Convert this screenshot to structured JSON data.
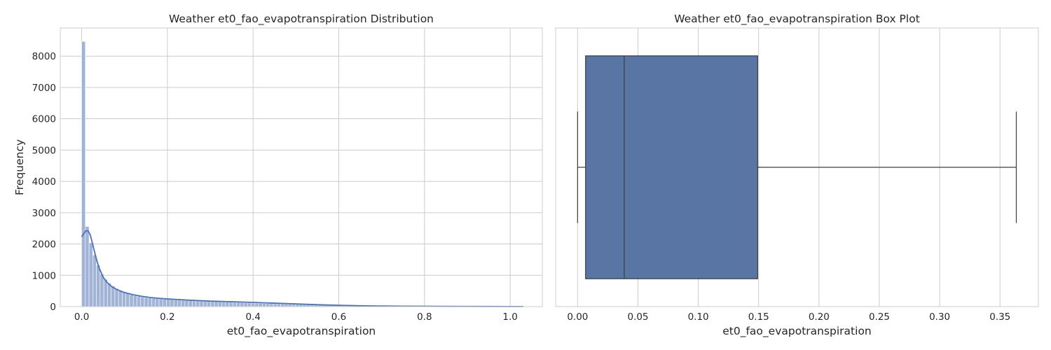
{
  "chart_data": [
    {
      "type": "bar",
      "title": "Weather et0_fao_evapotranspiration Distribution",
      "xlabel": "et0_fao_evapotranspiration",
      "ylabel": "Frequency",
      "xlim": [
        -0.05,
        1.075
      ],
      "ylim": [
        0,
        8900
      ],
      "x_ticks": [
        0.0,
        0.2,
        0.4,
        0.6,
        0.8,
        1.0
      ],
      "x_tick_labels": [
        "0.0",
        "0.2",
        "0.4",
        "0.6",
        "0.8",
        "1.0"
      ],
      "y_ticks": [
        0,
        1000,
        2000,
        3000,
        4000,
        5000,
        6000,
        7000,
        8000
      ],
      "y_tick_labels": [
        "0",
        "1000",
        "2000",
        "3000",
        "4000",
        "5000",
        "6000",
        "7000",
        "8000"
      ],
      "grid": true,
      "bar_color": "#a1b3d6",
      "kde_color": "#4c72b0",
      "bin_width": 0.0086,
      "bin_starts": [
        0.0,
        0.0086,
        0.0172,
        0.0258,
        0.0344,
        0.043,
        0.0516,
        0.0602,
        0.0688,
        0.0774,
        0.086,
        0.0946,
        0.1032,
        0.1118,
        0.1204,
        0.129,
        0.1376,
        0.1462,
        0.1548,
        0.1634,
        0.172,
        0.1806,
        0.1892,
        0.1978,
        0.2064,
        0.215,
        0.2236,
        0.2322,
        0.2408,
        0.2494,
        0.258,
        0.2666,
        0.2752,
        0.2838,
        0.2924,
        0.301,
        0.3096,
        0.3182,
        0.3268,
        0.3354,
        0.344,
        0.3526,
        0.3612,
        0.3698,
        0.3784,
        0.387,
        0.3956,
        0.4042,
        0.4128,
        0.4214,
        0.43,
        0.4386,
        0.4472,
        0.4558,
        0.4644,
        0.473,
        0.4816,
        0.4902,
        0.4988,
        0.5074,
        0.516,
        0.5246,
        0.5332,
        0.5418,
        0.5504,
        0.559,
        0.5676,
        0.5762,
        0.5848,
        0.5934,
        0.602,
        0.6106,
        0.6192,
        0.6278,
        0.6364,
        0.645,
        0.6536,
        0.6622,
        0.6708,
        0.6794,
        0.688,
        0.6966,
        0.7052,
        0.7138,
        0.7224,
        0.731,
        0.7396,
        0.7482,
        0.7568,
        0.7654,
        0.774,
        0.7826,
        0.7912,
        0.7998,
        0.8084,
        0.817,
        0.8256,
        0.8342,
        0.8428,
        0.8514,
        0.86,
        0.8686,
        0.8772,
        0.8858,
        0.8944,
        0.903,
        0.9116,
        0.9202,
        0.9288,
        0.9374,
        0.946,
        0.9546,
        0.9632,
        0.9718,
        0.9804,
        0.989,
        0.9976,
        1.0062,
        1.0148
      ],
      "frequencies": [
        8470,
        2560,
        2040,
        1650,
        1320,
        1040,
        870,
        750,
        660,
        580,
        520,
        470,
        420,
        380,
        350,
        330,
        310,
        290,
        275,
        265,
        255,
        245,
        235,
        228,
        220,
        212,
        205,
        198,
        192,
        186,
        180,
        175,
        170,
        165,
        160,
        156,
        152,
        148,
        144,
        140,
        136,
        132,
        128,
        124,
        120,
        116,
        112,
        108,
        104,
        100,
        96,
        92,
        88,
        84,
        80,
        76,
        72,
        68,
        64,
        60,
        56,
        52,
        48,
        45,
        42,
        39,
        36,
        33,
        30,
        27,
        25,
        23,
        21,
        19,
        17,
        16,
        15,
        14,
        13,
        12,
        11,
        10,
        9,
        9,
        8,
        8,
        7,
        7,
        6,
        6,
        5,
        5,
        5,
        4,
        4,
        4,
        3,
        3,
        3,
        3,
        2,
        2,
        2,
        2,
        2,
        2,
        1,
        1,
        1,
        1,
        1,
        1,
        1,
        1,
        1,
        1,
        1,
        1,
        1
      ],
      "kde": {
        "x": [
          0.0,
          0.005,
          0.01,
          0.015,
          0.02,
          0.025,
          0.03,
          0.035,
          0.04,
          0.05,
          0.06,
          0.07,
          0.08,
          0.09,
          0.1,
          0.12,
          0.14,
          0.16,
          0.18,
          0.2,
          0.25,
          0.3,
          0.35,
          0.4,
          0.45,
          0.5,
          0.55,
          0.6,
          0.65,
          0.7,
          0.75,
          0.8,
          0.85,
          0.9,
          0.95,
          1.0,
          1.03
        ],
        "y": [
          2230,
          2330,
          2420,
          2420,
          2290,
          2030,
          1750,
          1490,
          1260,
          940,
          760,
          640,
          560,
          500,
          450,
          380,
          330,
          290,
          265,
          245,
          205,
          175,
          155,
          135,
          110,
          85,
          60,
          40,
          28,
          20,
          14,
          10,
          7,
          5,
          4,
          3,
          3
        ]
      }
    },
    {
      "type": "box",
      "title": "Weather et0_fao_evapotranspiration Box Plot",
      "xlabel": "et0_fao_evapotranspiration",
      "ylabel": "",
      "xlim": [
        -0.0182,
        0.3818
      ],
      "x_ticks": [
        0.0,
        0.05,
        0.1,
        0.15,
        0.2,
        0.25,
        0.3,
        0.35
      ],
      "x_tick_labels": [
        "0.00",
        "0.05",
        "0.10",
        "0.15",
        "0.20",
        "0.25",
        "0.30",
        "0.35"
      ],
      "grid": true,
      "box_color": "#5975a4",
      "stats": {
        "min": 0.0,
        "q1": 0.0066,
        "median": 0.0386,
        "q3": 0.1492,
        "max": 0.3635
      }
    }
  ]
}
